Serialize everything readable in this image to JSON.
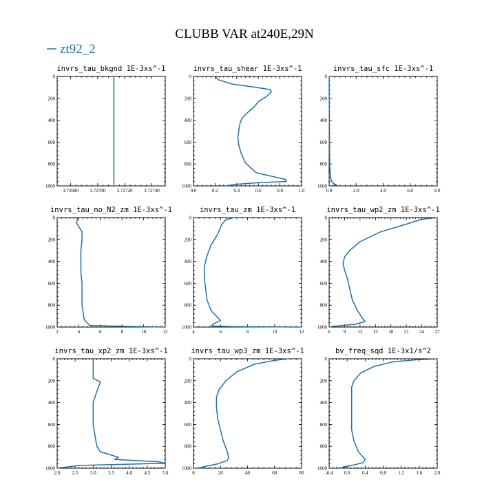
{
  "figure": {
    "title": "CLUBB VAR at240E,29N",
    "legend": [
      {
        "name": "zt92_2",
        "color": "#1f6fa8"
      }
    ]
  },
  "chart_data": [
    {
      "type": "line",
      "title": "invrs_tau_bkgnd",
      "units": "1E-3xs^-1",
      "xlim": [
        3.7267,
        3.7275
      ],
      "ylim": [
        0,
        1000
      ],
      "y_inverted": true,
      "xticks": [
        "3.72680",
        "3.72700",
        "3.72720",
        "3.72740"
      ],
      "yticks": [
        "0",
        "200",
        "400",
        "600",
        "800",
        "1000"
      ],
      "series": [
        {
          "name": "zt92_2",
          "x": [
            3.72712,
            3.72712
          ],
          "y": [
            0,
            1000
          ]
        }
      ]
    },
    {
      "type": "line",
      "title": "invrs_tau_shear",
      "units": "1E-3xs^-1",
      "xlim": [
        0.0,
        1.0
      ],
      "ylim": [
        0,
        1000
      ],
      "y_inverted": true,
      "xticks": [
        "0.0",
        "0.2",
        "0.4",
        "0.6",
        "0.8",
        "1.0"
      ],
      "yticks": [
        "0",
        "200",
        "400",
        "600",
        "800",
        "1000"
      ],
      "series": [
        {
          "name": "zt92_2",
          "x": [
            0.2,
            0.23,
            0.36,
            0.58,
            0.71,
            0.72,
            0.68,
            0.6,
            0.56,
            0.5,
            0.45,
            0.43,
            0.42,
            0.41,
            0.42,
            0.44,
            0.48,
            0.58,
            0.76,
            0.85,
            0.86,
            0.6,
            0.4,
            0.3
          ],
          "y": [
            0,
            30,
            70,
            100,
            120,
            140,
            180,
            230,
            280,
            330,
            380,
            430,
            490,
            560,
            630,
            700,
            790,
            880,
            920,
            940,
            960,
            970,
            985,
            1000
          ]
        }
      ]
    },
    {
      "type": "line",
      "title": "invrs_tau_sfc",
      "units": "1E-3xs^-1",
      "xlim": [
        0.0,
        8.0
      ],
      "ylim": [
        0,
        1000
      ],
      "y_inverted": true,
      "xticks": [
        "0.0",
        "2.0",
        "4.0",
        "6.0",
        "8.0"
      ],
      "yticks": [
        "0",
        "200",
        "400",
        "600",
        "800",
        "1000"
      ],
      "series": [
        {
          "name": "zt92_2",
          "x": [
            0.0,
            0.01,
            0.02,
            0.04,
            0.07,
            0.12,
            0.2,
            0.35,
            0.55,
            0.3,
            0.15
          ],
          "y": [
            0,
            300,
            600,
            800,
            880,
            930,
            960,
            980,
            992,
            996,
            1000
          ]
        }
      ]
    },
    {
      "type": "line",
      "title": "invrs_tau_no_N2_zm",
      "units": "1E-3xs^-1",
      "xlim": [
        2,
        12
      ],
      "ylim": [
        0,
        1000
      ],
      "y_inverted": true,
      "xticks": [
        "2",
        "4",
        "6",
        "8",
        "10",
        "12"
      ],
      "yticks": [
        "0",
        "200",
        "400",
        "600",
        "800",
        "1000"
      ],
      "series": [
        {
          "name": "zt92_2",
          "x": [
            3.9,
            3.8,
            4.3,
            4.3,
            4.2,
            4.2,
            4.2,
            4.3,
            4.3,
            4.5,
            5.0,
            9.0,
            12.0
          ],
          "y": [
            0,
            50,
            130,
            200,
            300,
            400,
            500,
            600,
            800,
            930,
            985,
            995,
            1000
          ]
        }
      ]
    },
    {
      "type": "line",
      "title": "invrs_tau_zm",
      "units": "1E-3xs^-1",
      "xlim": [
        4,
        12
      ],
      "ylim": [
        0,
        1000
      ],
      "y_inverted": true,
      "xticks": [
        "4",
        "6",
        "8",
        "10",
        "12"
      ],
      "yticks": [
        "0",
        "200",
        "400",
        "600",
        "800",
        "1000"
      ],
      "series": [
        {
          "name": "zt92_2",
          "x": [
            7.0,
            6.4,
            6.1,
            5.8,
            5.3,
            5.0,
            4.8,
            4.8,
            4.9,
            5.0,
            5.3,
            5.7,
            6.0,
            5.5,
            5.3,
            7.0,
            12.0
          ],
          "y": [
            0,
            20,
            60,
            150,
            250,
            350,
            450,
            550,
            650,
            750,
            850,
            900,
            940,
            970,
            990,
            996,
            1000
          ]
        }
      ]
    },
    {
      "type": "line",
      "title": "invrs_tau_wp2_zm",
      "units": "1E-3xs^-1",
      "xlim": [
        6,
        27
      ],
      "ylim": [
        0,
        1000
      ],
      "y_inverted": true,
      "xticks": [
        "6",
        "9",
        "12",
        "15",
        "18",
        "21",
        "24",
        "27"
      ],
      "yticks": [
        "0",
        "200",
        "400",
        "600",
        "800",
        "1000"
      ],
      "series": [
        {
          "name": "zt92_2",
          "x": [
            27,
            24,
            21,
            16,
            12,
            10,
            9,
            8.7,
            9,
            9.5,
            10,
            10.5,
            11.5,
            12.5,
            13,
            11,
            7,
            6
          ],
          "y": [
            0,
            15,
            60,
            130,
            220,
            300,
            360,
            420,
            480,
            550,
            650,
            750,
            850,
            920,
            950,
            975,
            992,
            1000
          ]
        }
      ]
    },
    {
      "type": "line",
      "title": "invrs_tau_xp2_zm",
      "units": "1E-3xs^-1",
      "xlim": [
        2.0,
        5.0
      ],
      "ylim": [
        0,
        1000
      ],
      "y_inverted": true,
      "xticks": [
        "2.0",
        "2.5",
        "3.0",
        "3.5",
        "4.0",
        "4.5",
        "5.0"
      ],
      "yticks": [
        "0",
        "200",
        "400",
        "600",
        "800",
        "1000"
      ],
      "series": [
        {
          "name": "zt92_2",
          "x": [
            3.0,
            3.0,
            3.0,
            3.2,
            3.1,
            3.0,
            3.0,
            3.0,
            3.05,
            3.1,
            3.2,
            3.5,
            3.7,
            3.6,
            4.8,
            5.0,
            2.6,
            2.0
          ],
          "y": [
            0,
            100,
            180,
            210,
            300,
            400,
            500,
            600,
            700,
            800,
            850,
            880,
            900,
            920,
            940,
            955,
            975,
            1000
          ]
        }
      ]
    },
    {
      "type": "line",
      "title": "invrs_tau_wp3_zm",
      "units": "1E-3xs^-1",
      "xlim": [
        0,
        80
      ],
      "ylim": [
        0,
        1000
      ],
      "y_inverted": true,
      "xticks": [
        "0",
        "20",
        "40",
        "60",
        "80"
      ],
      "yticks": [
        "0",
        "200",
        "400",
        "600",
        "800",
        "1000"
      ],
      "series": [
        {
          "name": "zt92_2",
          "x": [
            70,
            60,
            45,
            32,
            24,
            19,
            17,
            17,
            18,
            20,
            22,
            25,
            26,
            25,
            18,
            8,
            4
          ],
          "y": [
            0,
            15,
            50,
            120,
            200,
            280,
            350,
            450,
            550,
            650,
            750,
            850,
            900,
            930,
            960,
            985,
            1000
          ]
        }
      ]
    },
    {
      "type": "line",
      "title": "bv_freq_sqd",
      "units": "1E-3x1/s^2",
      "xlim": [
        -0.4,
        2.0
      ],
      "ylim": [
        0,
        1000
      ],
      "y_inverted": true,
      "xticks": [
        "-0.4",
        "0.0",
        "0.4",
        "0.8",
        "1.2",
        "1.6",
        "2.0"
      ],
      "yticks": [
        "0",
        "200",
        "400",
        "600",
        "800",
        "1000"
      ],
      "series": [
        {
          "name": "zt92_2",
          "x": [
            2.0,
            1.5,
            1.0,
            0.6,
            0.3,
            0.15,
            0.1,
            0.1,
            0.1,
            0.1,
            0.1,
            0.15,
            0.25,
            0.4,
            0.35,
            0.1,
            -0.1,
            0.0
          ],
          "y": [
            0,
            10,
            30,
            70,
            130,
            200,
            260,
            350,
            450,
            550,
            650,
            750,
            850,
            920,
            950,
            975,
            990,
            1000
          ]
        }
      ]
    }
  ]
}
